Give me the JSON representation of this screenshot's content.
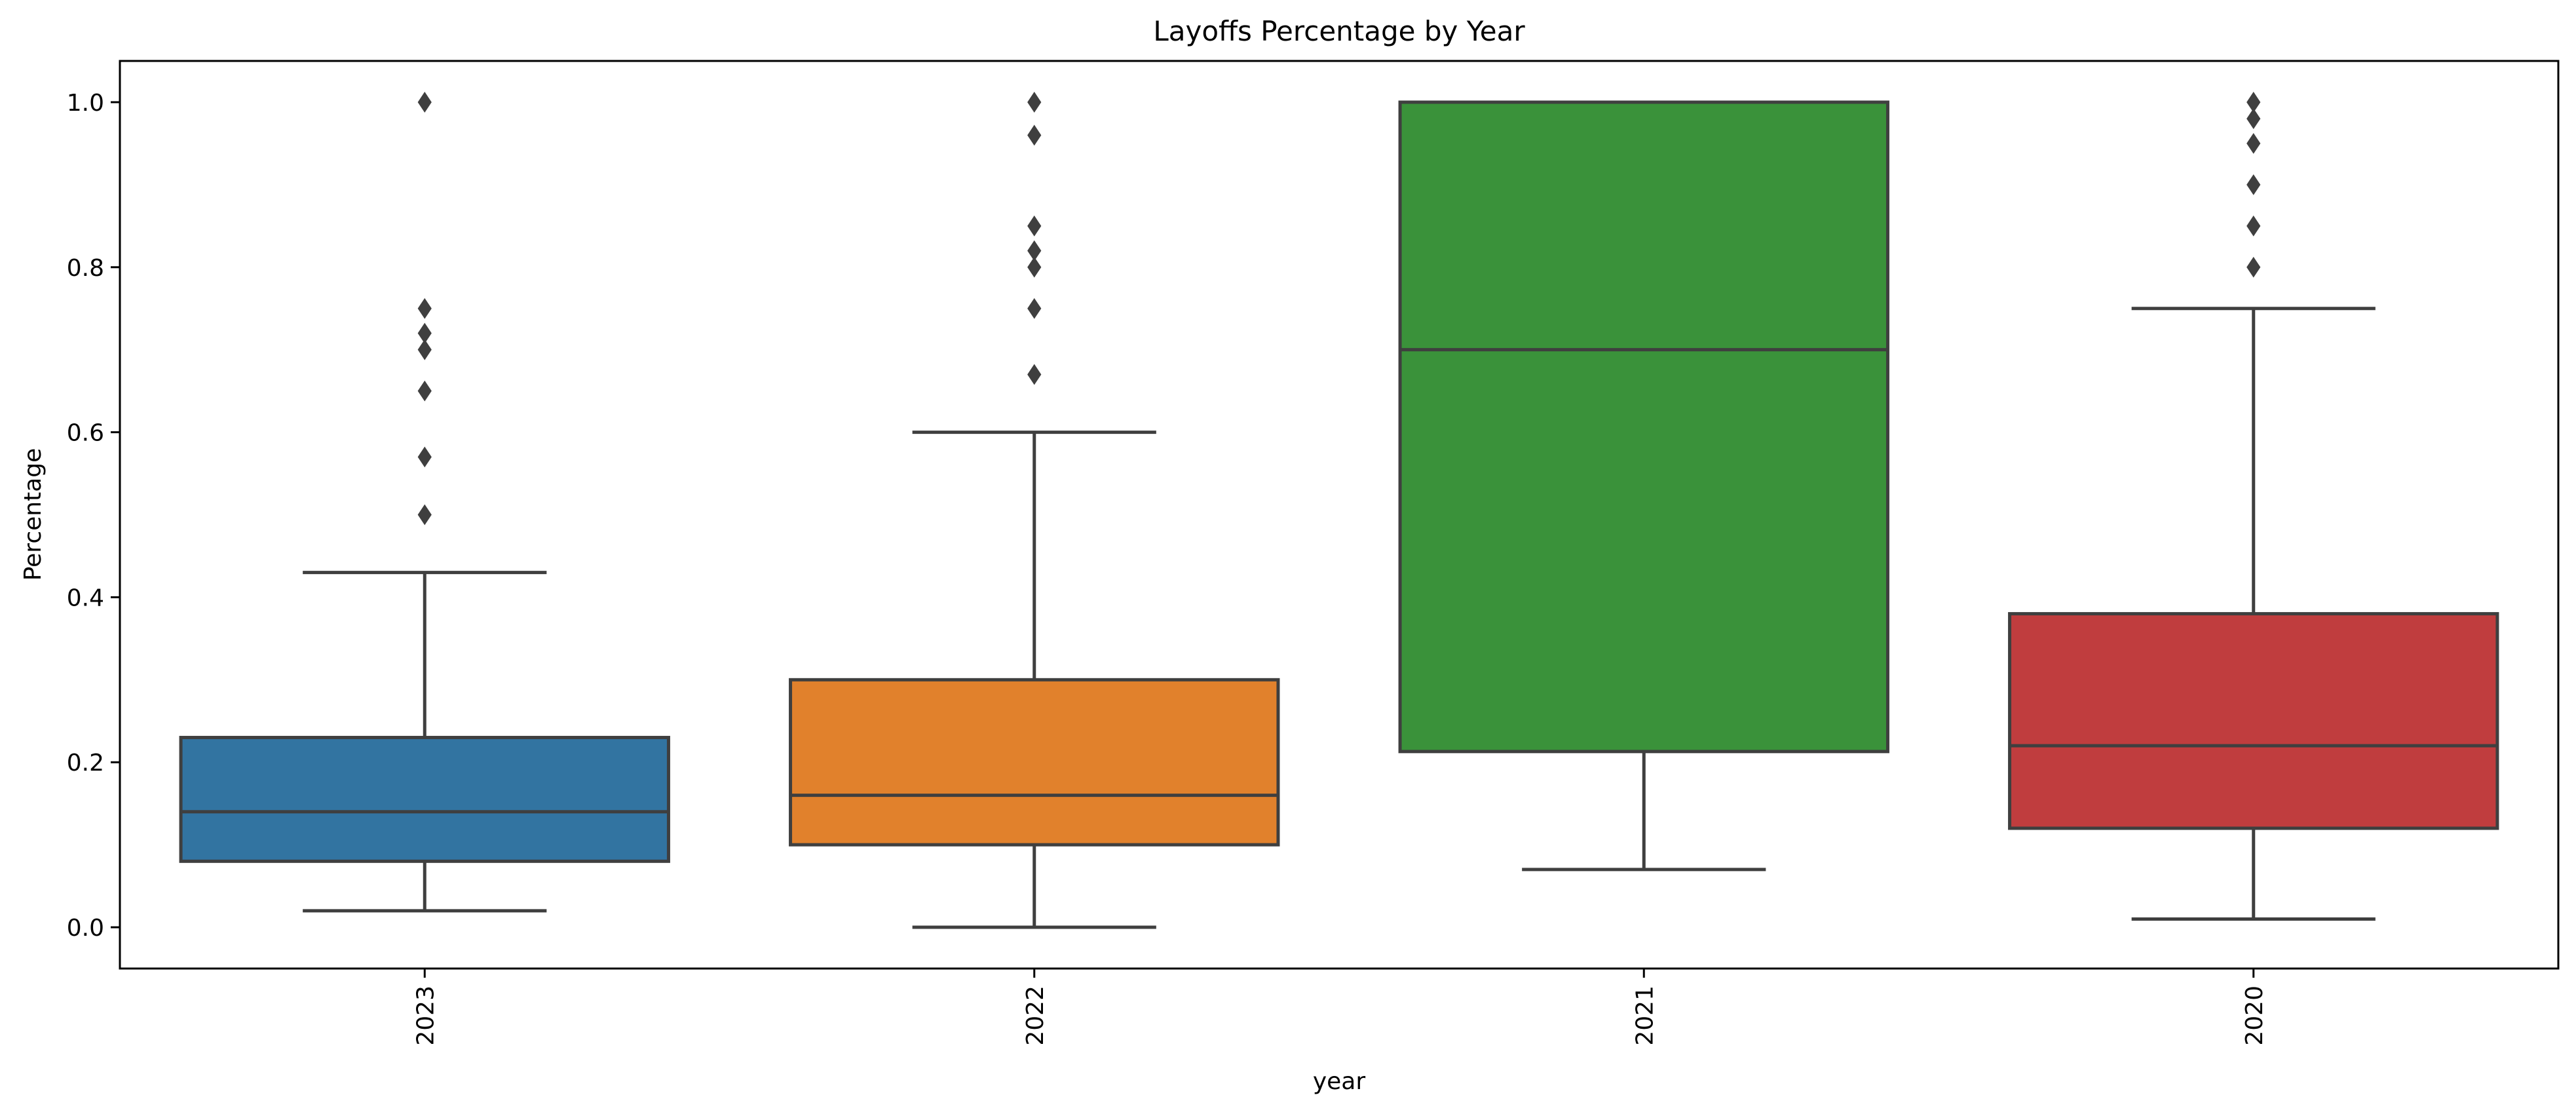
{
  "chart_data": {
    "type": "box",
    "title": "Layoffs Percentage by Year",
    "xlabel": "year",
    "ylabel": "Percentage",
    "ylim": [
      -0.05,
      1.05
    ],
    "yticks": [
      0.0,
      0.2,
      0.4,
      0.6,
      0.8,
      1.0
    ],
    "ytick_labels": [
      "0.0",
      "0.2",
      "0.4",
      "0.6",
      "0.8",
      "1.0"
    ],
    "grid": false,
    "categories": [
      "2023",
      "2022",
      "2021",
      "2020"
    ],
    "boxes": [
      {
        "category": "2023",
        "whisker_low": 0.02,
        "q1": 0.08,
        "median": 0.14,
        "q3": 0.23,
        "whisker_high": 0.43,
        "outliers": [
          0.5,
          0.57,
          0.65,
          0.7,
          0.72,
          0.75,
          1.0
        ],
        "color": "#3274a1"
      },
      {
        "category": "2022",
        "whisker_low": 0.0,
        "q1": 0.1,
        "median": 0.16,
        "q3": 0.3,
        "whisker_high": 0.6,
        "outliers": [
          0.67,
          0.75,
          0.8,
          0.82,
          0.85,
          0.96,
          1.0
        ],
        "color": "#e1812c"
      },
      {
        "category": "2021",
        "whisker_low": 0.07,
        "q1": 0.213,
        "median": 0.7,
        "q3": 1.0,
        "whisker_high": 1.0,
        "outliers": [],
        "color": "#3a923a"
      },
      {
        "category": "2020",
        "whisker_low": 0.01,
        "q1": 0.12,
        "median": 0.22,
        "q3": 0.38,
        "whisker_high": 0.75,
        "outliers": [
          0.8,
          0.85,
          0.9,
          0.95,
          0.98,
          1.0
        ],
        "color": "#c03d3e"
      }
    ],
    "line_color": "#3f3f3f"
  }
}
